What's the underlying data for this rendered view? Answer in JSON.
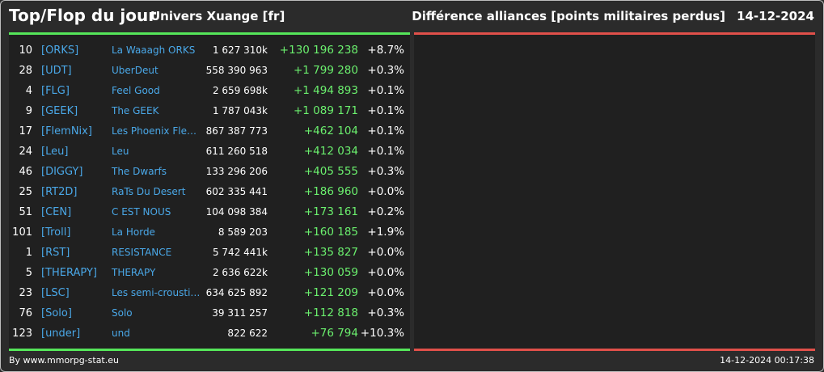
{
  "header": {
    "title": "Top/Flop du jour",
    "universe": "Univers Xuange [fr]",
    "subject": "Différence alliances [points militaires perdus]",
    "date": "14-12-2024"
  },
  "colors": {
    "top_accent": "#55e65a",
    "flop_accent": "#e0504a",
    "link_blue": "#4aa8e8",
    "positive_green": "#6bf06e"
  },
  "top": [
    {
      "rank": "10",
      "tag": "[ORKS]",
      "name": "La Waaagh ORKS",
      "points": "1 627 310k",
      "diff": "+130 196 238",
      "pct": "+8.7%"
    },
    {
      "rank": "28",
      "tag": "[UDT]",
      "name": "UberDeut",
      "points": "558 390 963",
      "diff": "+1 799 280",
      "pct": "+0.3%"
    },
    {
      "rank": "4",
      "tag": "[FLG]",
      "name": "Feel Good",
      "points": "2 659 698k",
      "diff": "+1 494 893",
      "pct": "+0.1%"
    },
    {
      "rank": "9",
      "tag": "[GEEK]",
      "name": "The GEEK",
      "points": "1 787 043k",
      "diff": "+1 089 171",
      "pct": "+0.1%"
    },
    {
      "rank": "17",
      "tag": "[FlemNix]",
      "name": "Les Phoenix Flem...",
      "points": "867 387 773",
      "diff": "+462 104",
      "pct": "+0.1%"
    },
    {
      "rank": "24",
      "tag": "[Leu]",
      "name": "Leu",
      "points": "611 260 518",
      "diff": "+412 034",
      "pct": "+0.1%"
    },
    {
      "rank": "46",
      "tag": "[DIGGY]",
      "name": "The Dwarfs",
      "points": "133 296 206",
      "diff": "+405 555",
      "pct": "+0.3%"
    },
    {
      "rank": "25",
      "tag": "[RT2D]",
      "name": "RaTs Du Desert",
      "points": "602 335 441",
      "diff": "+186 960",
      "pct": "+0.0%"
    },
    {
      "rank": "51",
      "tag": "[CEN]",
      "name": "C EST NOUS",
      "points": "104 098 384",
      "diff": "+173 161",
      "pct": "+0.2%"
    },
    {
      "rank": "101",
      "tag": "[Troll]",
      "name": "La Horde",
      "points": "8 589 203",
      "diff": "+160 185",
      "pct": "+1.9%"
    },
    {
      "rank": "1",
      "tag": "[RST]",
      "name": "RESISTANCE",
      "points": "5 742 441k",
      "diff": "+135 827",
      "pct": "+0.0%"
    },
    {
      "rank": "5",
      "tag": "[THERAPY]",
      "name": "THERAPY",
      "points": "2 636 622k",
      "diff": "+130 059",
      "pct": "+0.0%"
    },
    {
      "rank": "23",
      "tag": "[LSC]",
      "name": "Les semi-croustilla...",
      "points": "634 625 892",
      "diff": "+121 209",
      "pct": "+0.0%"
    },
    {
      "rank": "76",
      "tag": "[Solo]",
      "name": "Solo",
      "points": "39 311 257",
      "diff": "+112 818",
      "pct": "+0.3%"
    },
    {
      "rank": "123",
      "tag": "[under]",
      "name": "und",
      "points": "822 622",
      "diff": "+76 794",
      "pct": "+10.3%"
    }
  ],
  "footer": {
    "credit": "By www.mmorpg-stat.eu",
    "timestamp": "14-12-2024 00:17:38"
  }
}
